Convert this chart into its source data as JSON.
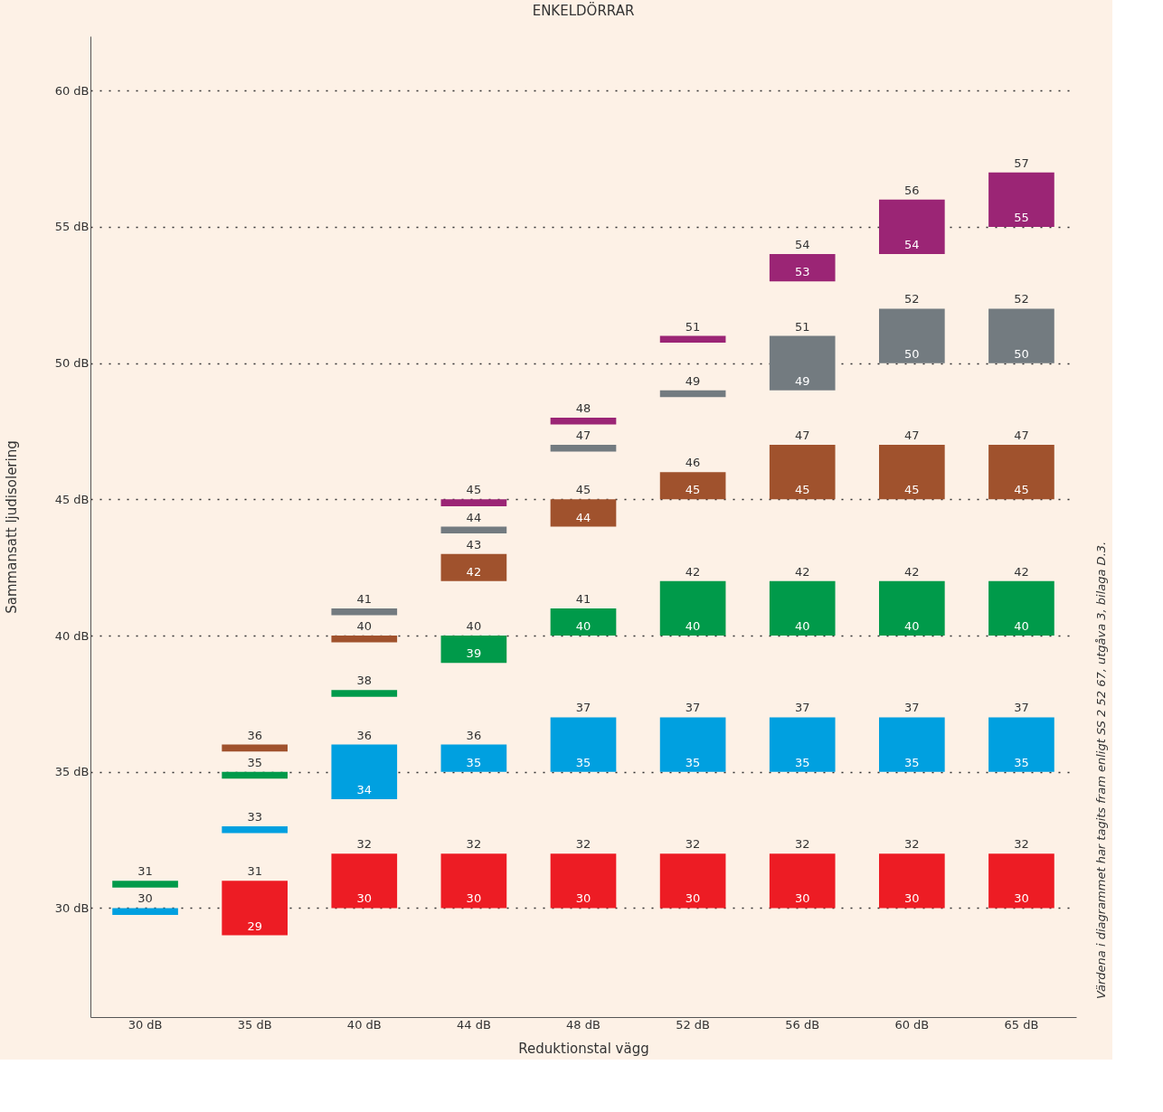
{
  "chart_data": {
    "type": "bar",
    "title": "ENKELDÖRRAR",
    "xlabel": "Reduktionstal vägg",
    "ylabel": "Sammansatt ljudisolering",
    "categories": [
      "30 dB",
      "35 dB",
      "40 dB",
      "44 dB",
      "48 dB",
      "52 dB",
      "56 dB",
      "60 dB",
      "65 dB"
    ],
    "series": [
      {
        "color": "#ed1c24",
        "base": [
          null,
          29,
          30,
          30,
          30,
          30,
          30,
          30,
          30
        ],
        "values": [
          null,
          2,
          2,
          2,
          2,
          2,
          2,
          2,
          2
        ],
        "value_labels": [
          null,
          "31",
          "32",
          "32",
          "32",
          "32",
          "32",
          "32",
          "32"
        ]
      },
      {
        "color": "#00a0e0",
        "base": [
          29.75,
          32.75,
          34,
          35,
          35,
          35,
          35,
          35,
          35
        ],
        "values": [
          0.25,
          0.25,
          2,
          1,
          2,
          2,
          2,
          2,
          2
        ],
        "value_labels": [
          "30",
          "33",
          "36",
          "36",
          "37",
          "37",
          "37",
          "37",
          "37"
        ]
      },
      {
        "color": "#009a4a",
        "base": [
          30.75,
          34.75,
          37.75,
          39,
          40,
          40,
          40,
          40,
          40
        ],
        "values": [
          0.25,
          0.25,
          0.25,
          1,
          1,
          2,
          2,
          2,
          2
        ],
        "value_labels": [
          "31",
          "35",
          "38",
          "40",
          "41",
          "42",
          "42",
          "42",
          "42"
        ]
      },
      {
        "color": "#a0522d",
        "base": [
          null,
          35.75,
          39.75,
          42,
          44,
          45,
          45,
          45,
          45
        ],
        "values": [
          null,
          0.25,
          0.25,
          1,
          1,
          1,
          2,
          2,
          2
        ],
        "value_labels": [
          null,
          "36",
          "40",
          "43",
          "45",
          "46",
          "47",
          "47",
          "47"
        ]
      },
      {
        "color": "#737b80",
        "base": [
          null,
          null,
          40.75,
          43.75,
          46.75,
          48.75,
          49,
          50,
          50
        ],
        "values": [
          null,
          null,
          0.25,
          0.25,
          0.25,
          0.25,
          2,
          2,
          2
        ],
        "value_labels": [
          null,
          null,
          "41",
          "44",
          "47",
          "49",
          "51",
          "52",
          "52"
        ]
      },
      {
        "color": "#9b2575",
        "base": [
          null,
          null,
          null,
          44.75,
          47.75,
          50.75,
          53,
          54,
          55
        ],
        "values": [
          null,
          null,
          null,
          0.25,
          0.25,
          0.25,
          1,
          2,
          2
        ],
        "value_labels": [
          null,
          null,
          null,
          "45",
          "48",
          "51",
          "54",
          "56",
          "57"
        ]
      }
    ],
    "ylim": [
      26,
      62
    ],
    "yticks": [
      {
        "value": 30,
        "label": "30 dB"
      },
      {
        "value": 35,
        "label": "35 dB"
      },
      {
        "value": 40,
        "label": "40 dB"
      },
      {
        "value": 45,
        "label": "45 dB"
      },
      {
        "value": 50,
        "label": "50 dB"
      },
      {
        "value": 55,
        "label": "55 dB"
      },
      {
        "value": 60,
        "label": "60 dB"
      }
    ],
    "grid": "y",
    "legend": false,
    "annotations": [
      {
        "text": "29",
        "x": "35 dB",
        "y": 29
      },
      {
        "text": "30",
        "x": "40 dB",
        "y": 30
      },
      {
        "text": "30",
        "x": "44 dB",
        "y": 30
      },
      {
        "text": "30",
        "x": "48 dB",
        "y": 30
      },
      {
        "text": "30",
        "x": "52 dB",
        "y": 30
      },
      {
        "text": "30",
        "x": "56 dB",
        "y": 30
      },
      {
        "text": "30",
        "x": "60 dB",
        "y": 30
      },
      {
        "text": "30",
        "x": "65 dB",
        "y": 30
      },
      {
        "text": "34",
        "x": "40 dB",
        "y": 34
      },
      {
        "text": "35",
        "x": "44 dB",
        "y": 35
      },
      {
        "text": "35",
        "x": "48 dB",
        "y": 35
      },
      {
        "text": "35",
        "x": "52 dB",
        "y": 35
      },
      {
        "text": "35",
        "x": "56 dB",
        "y": 35
      },
      {
        "text": "35",
        "x": "60 dB",
        "y": 35
      },
      {
        "text": "35",
        "x": "65 dB",
        "y": 35
      },
      {
        "text": "39",
        "x": "44 dB",
        "y": 39
      },
      {
        "text": "40",
        "x": "48 dB",
        "y": 40
      },
      {
        "text": "40",
        "x": "52 dB",
        "y": 40
      },
      {
        "text": "40",
        "x": "56 dB",
        "y": 40
      },
      {
        "text": "40",
        "x": "60 dB",
        "y": 40
      },
      {
        "text": "40",
        "x": "65 dB",
        "y": 40
      },
      {
        "text": "42",
        "x": "44 dB",
        "y": 42
      },
      {
        "text": "44",
        "x": "48 dB",
        "y": 44
      },
      {
        "text": "45",
        "x": "52 dB",
        "y": 45
      },
      {
        "text": "45",
        "x": "56 dB",
        "y": 45
      },
      {
        "text": "45",
        "x": "60 dB",
        "y": 45
      },
      {
        "text": "45",
        "x": "65 dB",
        "y": 45
      },
      {
        "text": "49",
        "x": "56 dB",
        "y": 49
      },
      {
        "text": "50",
        "x": "60 dB",
        "y": 50
      },
      {
        "text": "50",
        "x": "65 dB",
        "y": 50
      },
      {
        "text": "53",
        "x": "56 dB",
        "y": 53
      },
      {
        "text": "54",
        "x": "60 dB",
        "y": 54
      },
      {
        "text": "55",
        "x": "65 dB",
        "y": 55
      },
      "Värdena i diagrammet har tagits fram enligt SS 2 52 67, utgåva 3, bilaga D.3."
    ]
  }
}
